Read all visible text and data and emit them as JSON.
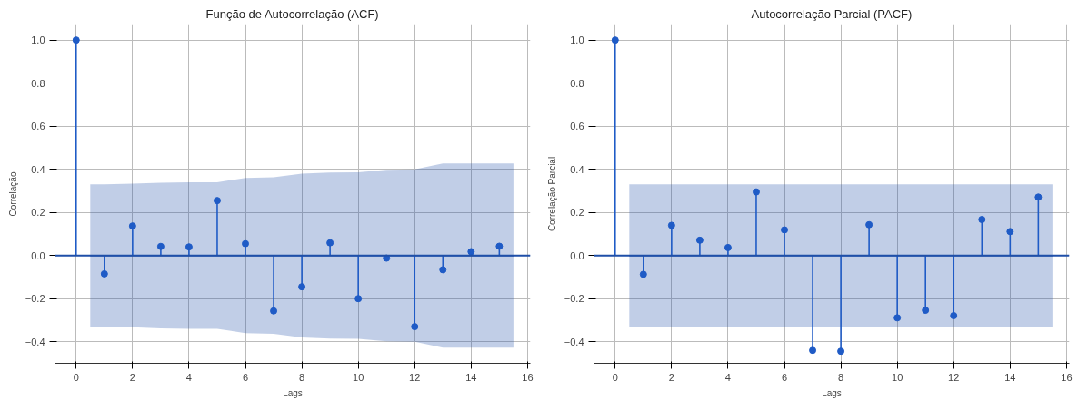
{
  "chart_data": [
    {
      "type": "lollipop",
      "title": "Função de Autocorrelação (ACF)",
      "xlabel": "Lags",
      "ylabel": "Correlação",
      "xlim": [
        -0.75,
        16.1
      ],
      "ylim": [
        -0.5,
        1.07
      ],
      "xticks": [
        0,
        2,
        4,
        6,
        8,
        10,
        12,
        14,
        16
      ],
      "yticks": [
        {
          "value": -0.4,
          "label": "−0.4"
        },
        {
          "value": -0.2,
          "label": "−0.2"
        },
        {
          "value": 0,
          "label": "0.0"
        },
        {
          "value": 0.2,
          "label": "0.2"
        },
        {
          "value": 0.4,
          "label": "0.4"
        },
        {
          "value": 0.6,
          "label": "0.6"
        },
        {
          "value": 0.8,
          "label": "0.8"
        },
        {
          "value": 1,
          "label": "1.0"
        }
      ],
      "grid": true,
      "marker": "circle",
      "ref_lines": [
        {
          "axis": "y",
          "value": 0,
          "color": "#1f4fa8"
        }
      ],
      "series": [
        {
          "type": "line",
          "marker": "none",
          "color": "#1f4fa8",
          "x": [
            0.5,
            1,
            2,
            3,
            4,
            5,
            6,
            7,
            8,
            9,
            10,
            11,
            12,
            13,
            14,
            15,
            15.5
          ],
          "values": [
            0,
            0,
            0,
            0,
            0,
            0,
            0,
            0,
            0,
            0,
            0,
            0,
            0,
            0,
            0,
            0,
            0
          ],
          "lower": [
            -0.33,
            -0.33,
            -0.333,
            -0.338,
            -0.34,
            -0.34,
            -0.36,
            -0.363,
            -0.38,
            -0.385,
            -0.386,
            -0.398,
            -0.4,
            -0.427,
            -0.427,
            -0.427,
            -0.427
          ],
          "upper": [
            0.33,
            0.33,
            0.333,
            0.338,
            0.34,
            0.34,
            0.36,
            0.363,
            0.38,
            0.385,
            0.386,
            0.398,
            0.4,
            0.427,
            0.427,
            0.427,
            0.427
          ]
        },
        {
          "type": "lollipop",
          "color": "#1f5bc6",
          "x": [
            0,
            1,
            2,
            3,
            4,
            5,
            6,
            7,
            8,
            9,
            10,
            11,
            12,
            13,
            14,
            15
          ],
          "values": [
            1.0,
            -0.085,
            0.137,
            0.042,
            0.04,
            0.255,
            0.055,
            -0.257,
            -0.145,
            0.059,
            -0.2,
            -0.012,
            -0.33,
            -0.066,
            0.018,
            0.043
          ]
        }
      ]
    },
    {
      "type": "lollipop",
      "title": "Autocorrelação Parcial (PACF)",
      "xlabel": "Lags",
      "ylabel": "Correlação Parcial",
      "xlim": [
        -0.75,
        16.1
      ],
      "ylim": [
        -0.5,
        1.07
      ],
      "xticks": [
        0,
        2,
        4,
        6,
        8,
        10,
        12,
        14,
        16
      ],
      "yticks": [
        {
          "value": -0.4,
          "label": "−0.4"
        },
        {
          "value": -0.2,
          "label": "−0.2"
        },
        {
          "value": 0,
          "label": "0.0"
        },
        {
          "value": 0.2,
          "label": "0.2"
        },
        {
          "value": 0.4,
          "label": "0.4"
        },
        {
          "value": 0.6,
          "label": "0.6"
        },
        {
          "value": 0.8,
          "label": "0.8"
        },
        {
          "value": 1,
          "label": "1.0"
        }
      ],
      "grid": true,
      "marker": "circle",
      "ref_lines": [
        {
          "axis": "y",
          "value": 0,
          "color": "#1f4fa8"
        }
      ],
      "series": [
        {
          "type": "line",
          "marker": "none",
          "color": "#1f4fa8",
          "x": [
            0.5,
            15.5
          ],
          "values": [
            0,
            0
          ],
          "lower": [
            -0.33,
            -0.33
          ],
          "upper": [
            0.33,
            0.33
          ]
        },
        {
          "type": "lollipop",
          "color": "#1f5bc6",
          "x": [
            0,
            1,
            2,
            3,
            4,
            5,
            6,
            7,
            8,
            9,
            10,
            11,
            12,
            13,
            14,
            15
          ],
          "values": [
            1.0,
            -0.087,
            0.14,
            0.071,
            0.037,
            0.295,
            0.119,
            -0.44,
            -0.444,
            0.143,
            -0.289,
            -0.254,
            -0.279,
            0.167,
            0.111,
            0.271
          ]
        }
      ]
    }
  ]
}
